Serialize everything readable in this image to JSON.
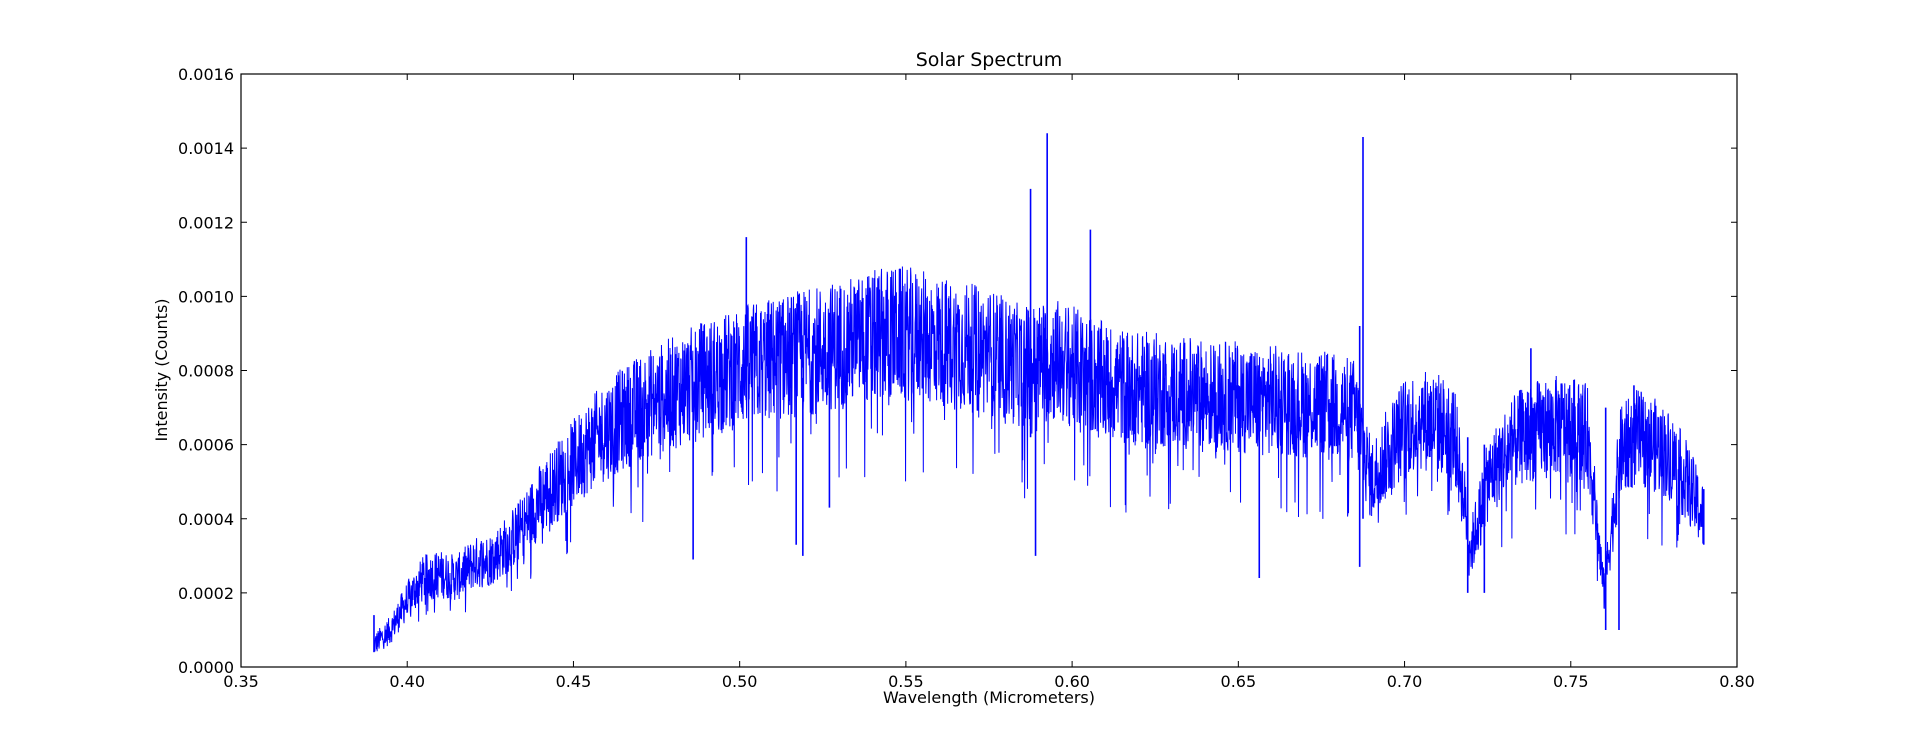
{
  "chart_data": {
    "type": "line",
    "title": "Solar Spectrum",
    "xlabel": "Wavelength (Micrometers)",
    "ylabel": "Intensity (Counts)",
    "xlim": [
      0.35,
      0.8
    ],
    "ylim": [
      0.0,
      0.0016
    ],
    "xticks": [
      "0.35",
      "0.40",
      "0.45",
      "0.50",
      "0.55",
      "0.60",
      "0.65",
      "0.70",
      "0.75",
      "0.80"
    ],
    "yticks": [
      "0.0000",
      "0.0002",
      "0.0004",
      "0.0006",
      "0.0008",
      "0.0010",
      "0.0012",
      "0.0014",
      "0.0016"
    ],
    "grid": false,
    "legend": "none",
    "line_color": "#0000ff",
    "series": [
      {
        "x": [
          0.39,
          0.395,
          0.4,
          0.405,
          0.41,
          0.415,
          0.42,
          0.425,
          0.43,
          0.435,
          0.44,
          0.445,
          0.45,
          0.455,
          0.46,
          0.465,
          0.47,
          0.475,
          0.48,
          0.485,
          0.49,
          0.495,
          0.5,
          0.505,
          0.51,
          0.515,
          0.52,
          0.525,
          0.53,
          0.535,
          0.54,
          0.545,
          0.55,
          0.555,
          0.56,
          0.565,
          0.57,
          0.575,
          0.58,
          0.585,
          0.59,
          0.595,
          0.6,
          0.605,
          0.61,
          0.615,
          0.62,
          0.625,
          0.63,
          0.635,
          0.64,
          0.645,
          0.65,
          0.655,
          0.66,
          0.665,
          0.67,
          0.675,
          0.68,
          0.685,
          0.69,
          0.695,
          0.7,
          0.705,
          0.71,
          0.715,
          0.72,
          0.725,
          0.73,
          0.735,
          0.74,
          0.745,
          0.75,
          0.755,
          0.76,
          0.765,
          0.77,
          0.775,
          0.78,
          0.785,
          0.79
        ],
        "y": [
          6e-05,
          0.0001,
          0.00018,
          0.00024,
          0.00025,
          0.00024,
          0.00028,
          0.00029,
          0.00033,
          0.00038,
          0.00045,
          0.0005,
          0.00055,
          0.0006,
          0.00064,
          0.00067,
          0.0007,
          0.00072,
          0.00074,
          0.00076,
          0.00078,
          0.00079,
          0.00081,
          0.00082,
          0.00083,
          0.00084,
          0.00085,
          0.00086,
          0.00087,
          0.00088,
          0.00089,
          0.0009,
          0.0009,
          0.00089,
          0.00088,
          0.00087,
          0.00086,
          0.00085,
          0.00083,
          0.00081,
          0.00082,
          0.00083,
          0.00081,
          0.00079,
          0.00077,
          0.00076,
          0.00075,
          0.00075,
          0.00074,
          0.00074,
          0.00073,
          0.00073,
          0.00073,
          0.00072,
          0.00072,
          0.00072,
          0.00071,
          0.00071,
          0.0007,
          0.00069,
          0.0005,
          0.00058,
          0.00065,
          0.00067,
          0.00066,
          0.00063,
          0.00032,
          0.0005,
          0.00058,
          0.00062,
          0.00064,
          0.00065,
          0.00065,
          0.00063,
          0.0002,
          0.00058,
          0.00062,
          0.0006,
          0.00057,
          0.0005,
          0.0004
        ]
      }
    ],
    "features": [
      {
        "x": 0.39,
        "low": 4e-05,
        "high": 0.00014
      },
      {
        "x": 0.486,
        "low": 0.00029,
        "high": 0.00074
      },
      {
        "x": 0.502,
        "low": 0.00072,
        "high": 0.00116
      },
      {
        "x": 0.517,
        "low": 0.00033,
        "high": 0.0008
      },
      {
        "x": 0.519,
        "low": 0.0003,
        "high": 0.00078
      },
      {
        "x": 0.527,
        "low": 0.00043,
        "high": 0.00082
      },
      {
        "x": 0.5875,
        "low": 0.00062,
        "high": 0.00129
      },
      {
        "x": 0.589,
        "low": 0.0003,
        "high": 0.0008
      },
      {
        "x": 0.5925,
        "low": 0.00072,
        "high": 0.00144
      },
      {
        "x": 0.6055,
        "low": 0.00066,
        "high": 0.00118
      },
      {
        "x": 0.6563,
        "low": 0.00024,
        "high": 0.00072
      },
      {
        "x": 0.6865,
        "low": 0.00027,
        "high": 0.00092
      },
      {
        "x": 0.6875,
        "low": 0.0004,
        "high": 0.00143
      },
      {
        "x": 0.719,
        "low": 0.0002,
        "high": 0.00062
      },
      {
        "x": 0.724,
        "low": 0.0002,
        "high": 0.0006
      },
      {
        "x": 0.738,
        "low": 0.00058,
        "high": 0.00086
      },
      {
        "x": 0.7605,
        "low": 0.0001,
        "high": 0.0007
      },
      {
        "x": 0.7645,
        "low": 0.0001,
        "high": 0.0005
      },
      {
        "x": 0.769,
        "low": 0.00055,
        "high": 0.00076
      },
      {
        "x": 0.79,
        "low": 0.00033,
        "high": 0.00048
      }
    ]
  }
}
